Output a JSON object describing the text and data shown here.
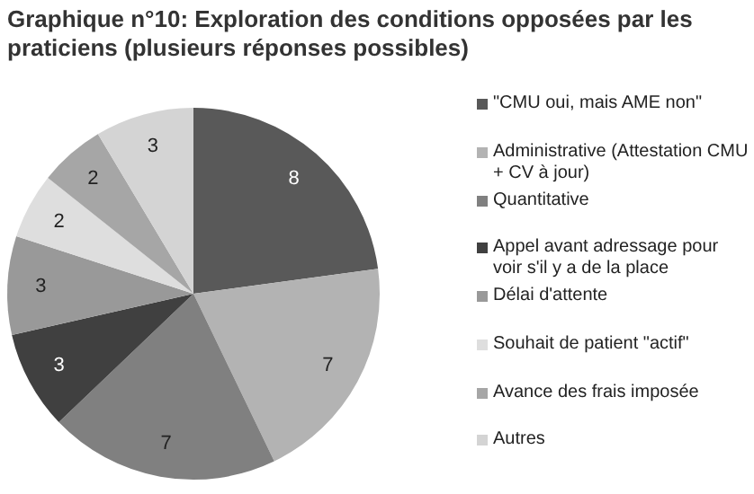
{
  "chart_data": {
    "type": "pie",
    "title": "Graphique n°10: Exploration des conditions opposées par les praticiens (plusieurs réponses possibles)",
    "categories": [
      "\"CMU oui, mais AME non\"",
      "Administrative (Attestation CMU + CV à jour)",
      "Quantitative",
      "Appel avant adressage pour voir s'il y a de la place",
      "Délai d'attente",
      "Souhait de patient \"actif\"",
      "Avance des frais imposée",
      "Autres"
    ],
    "values": [
      8,
      7,
      7,
      3,
      3,
      2,
      2,
      3
    ],
    "colors": [
      "#595959",
      "#b3b3b3",
      "#808080",
      "#404040",
      "#999999",
      "#dedede",
      "#a6a6a6",
      "#d4d4d4"
    ],
    "data_labels": true,
    "legend": "right"
  }
}
